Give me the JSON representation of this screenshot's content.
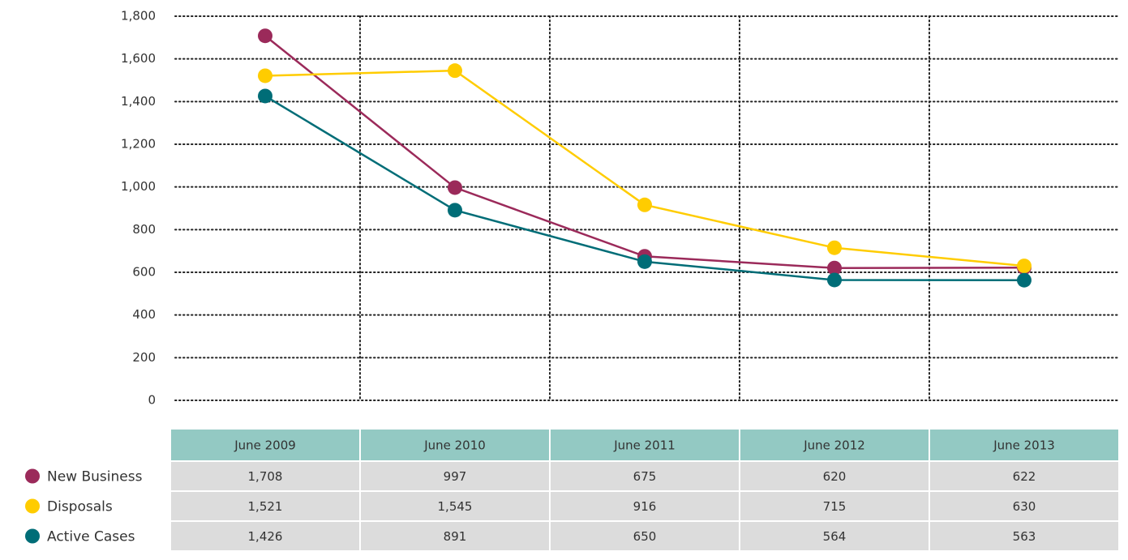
{
  "chart_data": {
    "type": "line",
    "categories": [
      "June 2009",
      "June 2010",
      "June 2011",
      "June 2012",
      "June 2013"
    ],
    "series": [
      {
        "name": "New Business",
        "color": "#9b2a5a",
        "values": [
          1708,
          997,
          675,
          620,
          622
        ],
        "value_labels": [
          "1,708",
          "997",
          "675",
          "620",
          "622"
        ]
      },
      {
        "name": "Disposals",
        "color": "#ffcc00",
        "values": [
          1521,
          1545,
          916,
          715,
          630
        ],
        "value_labels": [
          "1,521",
          "1,545",
          "916",
          "715",
          "630"
        ]
      },
      {
        "name": "Active Cases",
        "color": "#006d77",
        "values": [
          1426,
          891,
          650,
          564,
          563
        ],
        "value_labels": [
          "1,426",
          "891",
          "650",
          "564",
          "563"
        ]
      }
    ],
    "ylim": [
      0,
      1800
    ],
    "yticks": [
      0,
      200,
      400,
      600,
      800,
      {
        "value": 1000,
        "label": "1,000"
      },
      {
        "value": 1200,
        "label": "1,200"
      },
      {
        "value": 1400,
        "label": "1,400"
      },
      {
        "value": 1600,
        "label": "1,600"
      },
      {
        "value": 1800,
        "label": "1,800"
      }
    ],
    "grid": true
  }
}
